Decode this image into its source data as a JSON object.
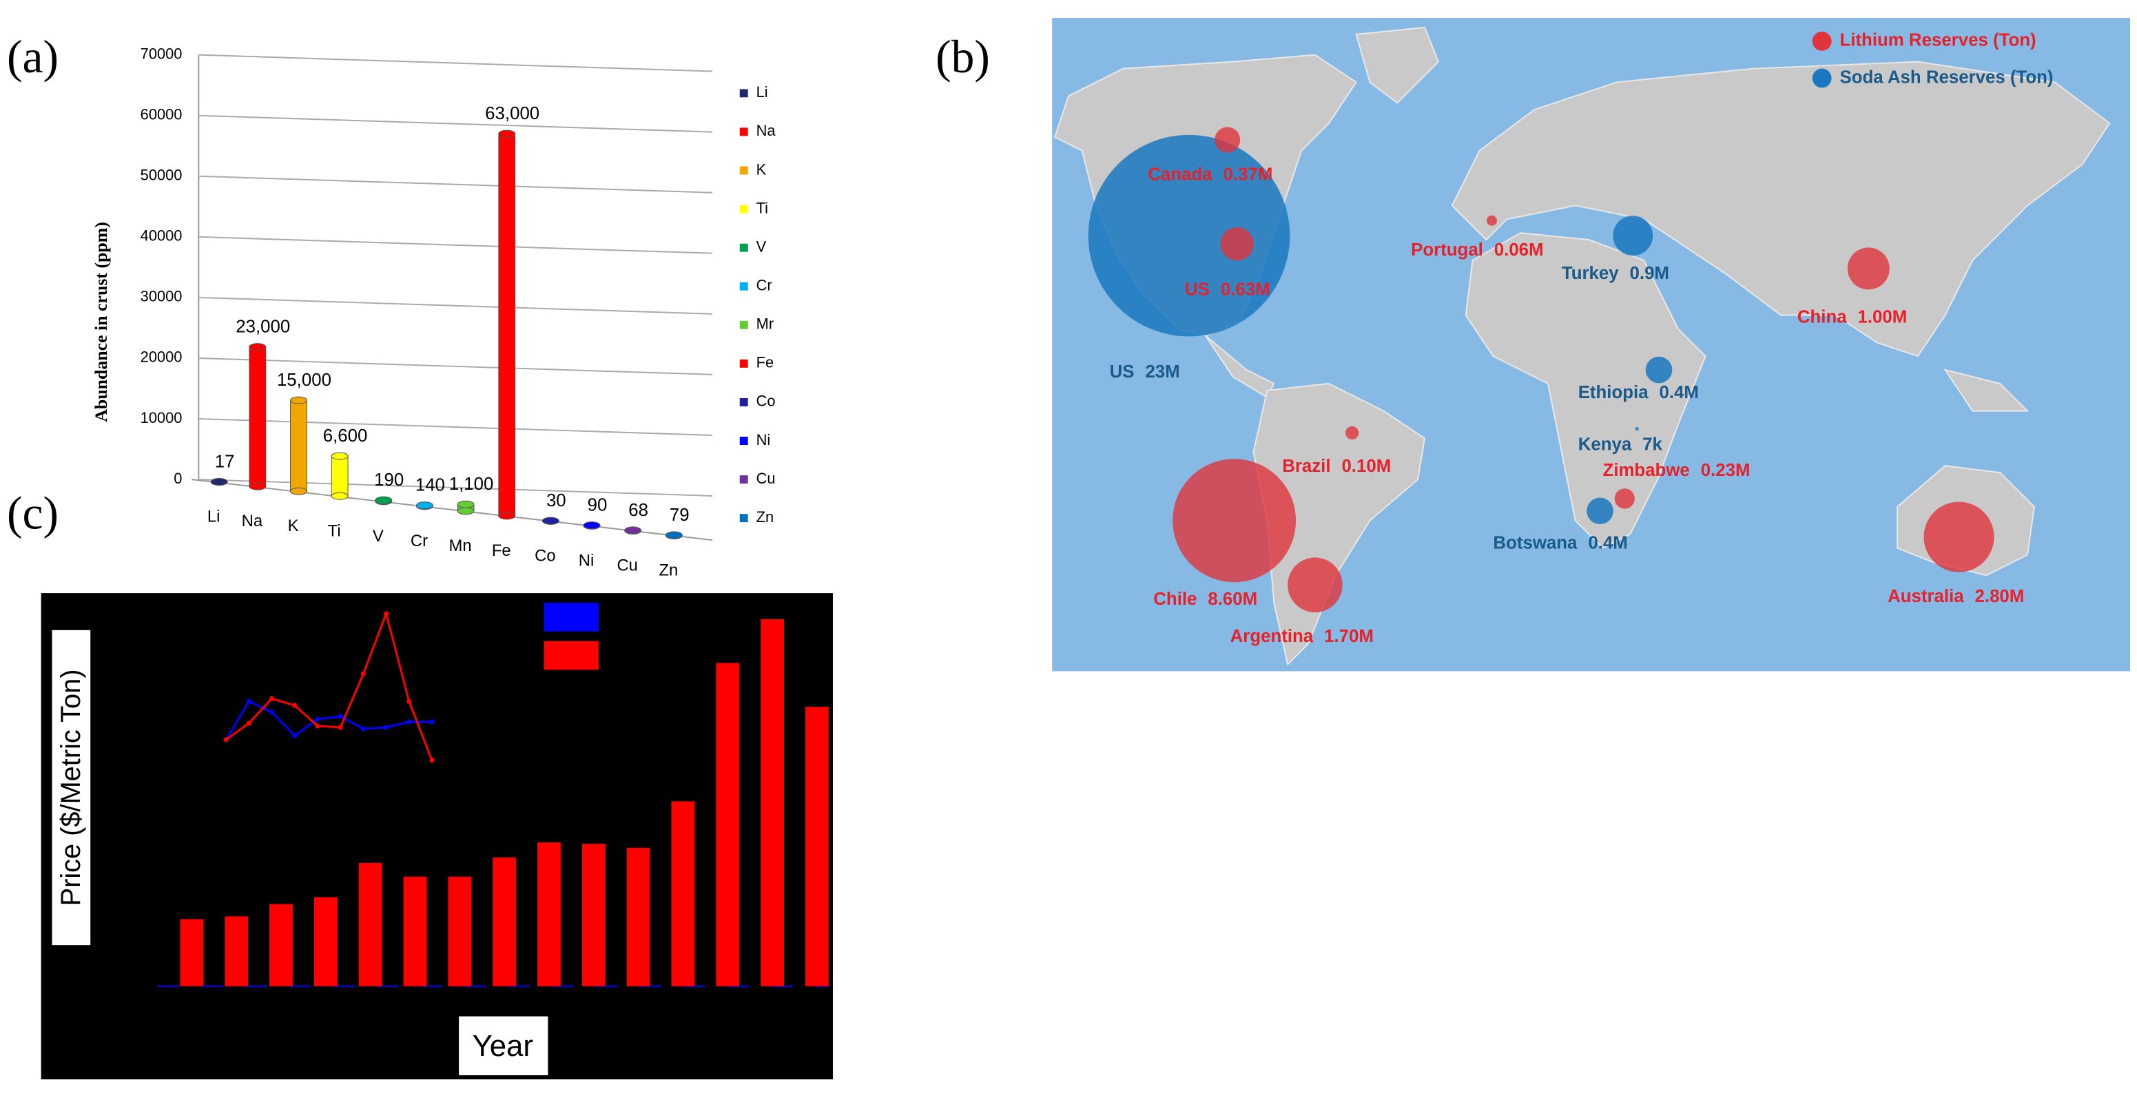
{
  "chart_data": [
    {
      "type": "bar3d",
      "panel": "(a)",
      "ylabel": "Abundance in crust (ppm)",
      "categories": [
        "Li",
        "Na",
        "K",
        "Ti",
        "V",
        "Cr",
        "Mn",
        "Fe",
        "Co",
        "Ni",
        "Cu",
        "Zn"
      ],
      "values": [
        17,
        23000,
        15000,
        6600,
        190,
        140,
        1100,
        63000,
        30,
        90,
        68,
        79
      ],
      "value_labels": [
        "17",
        "23,000",
        "15,000",
        "6,600",
        "190",
        "140",
        "1,100",
        "63,000",
        "30",
        "90",
        "68",
        "79"
      ],
      "colors": [
        "#1f2a6e",
        "#ff0000",
        "#f0a800",
        "#ffff00",
        "#00a050",
        "#00b0f0",
        "#66cc33",
        "#ff0000",
        "#2020a0",
        "#0000ff",
        "#7030a0",
        "#0070c0"
      ],
      "legend": [
        "Li",
        "Na",
        "K",
        "Ti",
        "V",
        "Cr",
        "Mr",
        "Fe",
        "Co",
        "Ni",
        "Cu",
        "Zn"
      ],
      "ylim": [
        0,
        70000
      ],
      "yticks": [
        0,
        10000,
        20000,
        30000,
        40000,
        50000,
        60000,
        70000
      ],
      "grid": true
    },
    {
      "type": "bubble",
      "panel": "(b)",
      "series": [
        {
          "name": "Lithium Reserves (Ton)",
          "color": "#e0343c",
          "label_color": "#e8202a",
          "places": [
            "Canada",
            "US",
            "Portugal",
            "China",
            "Brazil",
            "Zimbabwe",
            "Chile",
            "Argentina",
            "Australia"
          ],
          "values": [
            370000,
            630000,
            60000,
            1000000,
            100000,
            230000,
            8600000,
            1700000,
            2800000
          ],
          "value_labels": [
            "0.37M",
            "0.63M",
            "0.06M",
            "1.00M",
            "0.10M",
            "0.23M",
            "8.60M",
            "1.70M",
            "2.80M"
          ]
        },
        {
          "name": "Soda Ash Reserves (Ton)",
          "color": "#1a78c0",
          "label_color": "#1a5a8a",
          "places": [
            "US",
            "Turkey",
            "Ethiopia",
            "Kenya",
            "Botswana"
          ],
          "values": [
            23000000,
            900000,
            400000,
            7000,
            400000
          ],
          "value_labels": [
            "23M",
            "0.9M",
            "0.4M",
            "7k",
            "0.4M"
          ]
        }
      ]
    },
    {
      "type": "bar",
      "panel": "(c)",
      "xlabel": "Year",
      "ylabel": "Price ($/Metric Ton)",
      "series": [
        {
          "color": "#0000ff",
          "values": [
            1,
            1,
            1,
            1,
            1,
            1,
            1,
            1,
            1,
            1,
            1,
            1,
            1,
            1,
            1
          ]
        },
        {
          "color": "#ff0000",
          "values": [
            49,
            51,
            60,
            65,
            90,
            80,
            80,
            94,
            105,
            104,
            101,
            135,
            236,
            268,
            204
          ]
        }
      ],
      "ylim": [
        0,
        300
      ]
    },
    {
      "type": "line",
      "series": [
        {
          "color": "#0000ff",
          "values": [
            20,
            48,
            40,
            23,
            35,
            37,
            28,
            29,
            33,
            33
          ]
        },
        {
          "color": "#ff0000",
          "values": [
            20,
            32,
            50,
            45,
            30,
            29,
            68,
            112,
            48,
            5
          ]
        }
      ],
      "ylim": [
        0,
        120
      ]
    }
  ]
}
